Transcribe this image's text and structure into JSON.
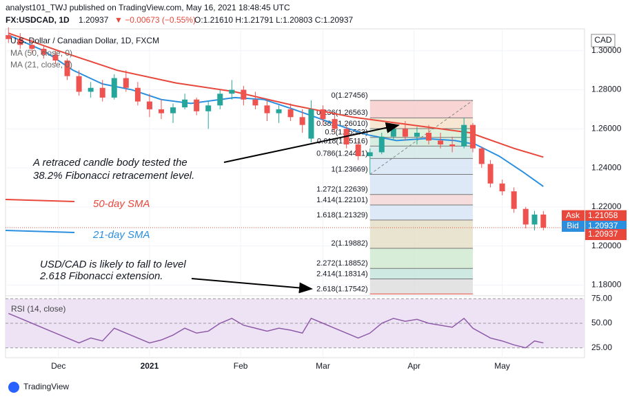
{
  "chart_data": {
    "type": "candlestick",
    "header": {
      "publisher": "analyst101_TWJ published on TradingView.com, May 16, 2021 18:48:45 UTC",
      "symbol": "FX:USDCAD, 1D",
      "last": "1.20937",
      "change": "▼ −0.00673 (−0.55%)",
      "ohlc": "O:1.21610 H:1.21791 L:1.20803 C:1.20937"
    },
    "title": "U.S. Dollar / Canadian Dollar, 1D, FXCM",
    "currency": "CAD",
    "xlim": [
      12,
      209
    ],
    "xticks": [
      {
        "value": 30,
        "label": "Dec"
      },
      {
        "value": 61,
        "label": "2021"
      },
      {
        "value": 92,
        "label": "Feb"
      },
      {
        "value": 120,
        "label": "Mar"
      },
      {
        "value": 151,
        "label": "Apr"
      },
      {
        "value": 181,
        "label": "May"
      }
    ],
    "ylim": [
      1.1745,
      1.3112
    ],
    "yticks": [
      {
        "value": 1.3,
        "label": "1.30000"
      },
      {
        "value": 1.28,
        "label": "1.28000"
      },
      {
        "value": 1.26,
        "label": "1.26000"
      },
      {
        "value": 1.24,
        "label": "1.24000"
      },
      {
        "value": 1.22,
        "label": "1.22000"
      },
      {
        "value": 1.2,
        "label": "1.20000"
      },
      {
        "value": 1.18,
        "label": "1.18000"
      }
    ],
    "candles": {
      "x": [
        13,
        17,
        21,
        25,
        29,
        33,
        37,
        41,
        45,
        49,
        53,
        57,
        61,
        65,
        69,
        73,
        77,
        81,
        85,
        89,
        93,
        97,
        101,
        105,
        109,
        113,
        116,
        120,
        124,
        128,
        132,
        136,
        140,
        144,
        148,
        152,
        156,
        160,
        164,
        168,
        171,
        174,
        177,
        181,
        185,
        189,
        192,
        195
      ],
      "open": [
        1.308,
        1.306,
        1.303,
        1.301,
        1.298,
        1.295,
        1.287,
        1.279,
        1.281,
        1.276,
        1.286,
        1.281,
        1.274,
        1.27,
        1.268,
        1.271,
        1.275,
        1.269,
        1.272,
        1.278,
        1.28,
        1.275,
        1.272,
        1.268,
        1.27,
        1.266,
        1.255,
        1.27,
        1.265,
        1.26,
        1.252,
        1.246,
        1.248,
        1.256,
        1.26,
        1.256,
        1.258,
        1.254,
        1.252,
        1.251,
        1.262,
        1.25,
        1.242,
        1.232,
        1.228,
        1.219,
        1.211,
        1.2161
      ],
      "high": [
        1.312,
        1.309,
        1.306,
        1.303,
        1.3,
        1.296,
        1.29,
        1.284,
        1.285,
        1.288,
        1.29,
        1.284,
        1.278,
        1.275,
        1.273,
        1.278,
        1.276,
        1.274,
        1.28,
        1.285,
        1.282,
        1.279,
        1.275,
        1.272,
        1.273,
        1.27,
        1.27456,
        1.272,
        1.268,
        1.262,
        1.254,
        1.25,
        1.258,
        1.262,
        1.264,
        1.261,
        1.262,
        1.258,
        1.256,
        1.26563,
        1.263,
        1.251,
        1.244,
        1.234,
        1.23,
        1.22,
        1.218,
        1.21791
      ],
      "low": [
        1.304,
        1.301,
        1.299,
        1.296,
        1.293,
        1.285,
        1.277,
        1.276,
        1.274,
        1.275,
        1.279,
        1.272,
        1.266,
        1.265,
        1.263,
        1.27,
        1.267,
        1.26,
        1.27,
        1.275,
        1.272,
        1.27,
        1.264,
        1.263,
        1.264,
        1.258,
        1.253,
        1.262,
        1.258,
        1.25,
        1.244,
        1.23669,
        1.247,
        1.254,
        1.254,
        1.252,
        1.252,
        1.25,
        1.248,
        1.25,
        1.248,
        1.24,
        1.23,
        1.226,
        1.217,
        1.209,
        1.208,
        1.20803
      ],
      "close": [
        1.306,
        1.303,
        1.301,
        1.298,
        1.295,
        1.287,
        1.279,
        1.281,
        1.276,
        1.286,
        1.281,
        1.274,
        1.27,
        1.268,
        1.271,
        1.275,
        1.269,
        1.272,
        1.278,
        1.28,
        1.275,
        1.272,
        1.268,
        1.27,
        1.266,
        1.262,
        1.27,
        1.265,
        1.26,
        1.252,
        1.246,
        1.248,
        1.256,
        1.26,
        1.256,
        1.258,
        1.254,
        1.252,
        1.251,
        1.262,
        1.25,
        1.242,
        1.232,
        1.228,
        1.219,
        1.211,
        1.2161,
        1.20937
      ]
    },
    "series": [
      {
        "name": "MA (50, close, 0)",
        "color": "#e8473b",
        "label": "50-day SMA",
        "x": [
          13,
          30,
          50,
          70,
          90,
          110,
          130,
          150,
          170,
          185,
          195
        ],
        "values": [
          1.309,
          1.3,
          1.29,
          1.2835,
          1.279,
          1.272,
          1.266,
          1.262,
          1.258,
          1.25,
          1.2455
        ]
      },
      {
        "name": "MA (21, close, 0)",
        "color": "#2b8fe0",
        "label": "21-day SMA",
        "x": [
          13,
          25,
          35,
          45,
          55,
          65,
          75,
          90,
          100,
          110,
          125,
          135,
          145,
          155,
          165,
          172,
          180,
          188,
          195
        ],
        "values": [
          1.308,
          1.3,
          1.29,
          1.283,
          1.28,
          1.275,
          1.273,
          1.276,
          1.275,
          1.27,
          1.262,
          1.257,
          1.254,
          1.255,
          1.254,
          1.252,
          1.246,
          1.238,
          1.2305
        ]
      }
    ],
    "fibonacci": {
      "x": [
        136,
        171
      ],
      "levels": [
        {
          "value": 1.27456,
          "label": "0(1.27456)"
        },
        {
          "value": 1.26563,
          "label": "0.236(1.26563)"
        },
        {
          "value": 1.2601,
          "label": "0.382(1.26010)"
        },
        {
          "value": 1.25563,
          "label": "0.5(1.25563)"
        },
        {
          "value": 1.25116,
          "label": "0.618(1.25116)"
        },
        {
          "value": 1.24481,
          "label": "0.786(1.24481)"
        },
        {
          "value": 1.23669,
          "label": "1(1.23669)"
        },
        {
          "value": 1.22639,
          "label": "1.272(1.22639)"
        },
        {
          "value": 1.22101,
          "label": "1.414(1.22101)"
        },
        {
          "value": 1.21329,
          "label": "1.618(1.21329)"
        },
        {
          "value": 1.19882,
          "label": "2(1.19882)"
        },
        {
          "value": 1.18852,
          "label": "2.272(1.18852)"
        },
        {
          "value": 1.18314,
          "label": "2.414(1.18314)"
        },
        {
          "value": 1.17542,
          "label": "2.618(1.17542)"
        }
      ]
    },
    "price_labels": [
      {
        "name": "Ask",
        "value": 1.21058,
        "label": "1.21058",
        "color": "#e8473b"
      },
      {
        "name": "Bid",
        "value": 1.20937,
        "label": "1.20937",
        "color": "#2b8fe0"
      },
      {
        "value": 1.20937,
        "label": "1.20937",
        "color": "#e8473b"
      }
    ],
    "annotations": [
      "A retraced candle body tested the",
      "38.2% Fibonacci  retracement level.",
      "USD/CAD is likely to fall to level",
      "2.618 Fibonacci extension."
    ],
    "rsi": {
      "name": "RSI (14, close)",
      "color": "#8e5aa8",
      "ylim": [
        15,
        78
      ],
      "yticks": [
        {
          "value": 75,
          "label": "75.00"
        },
        {
          "value": 50,
          "label": "50.00"
        },
        {
          "value": 25,
          "label": "25.00"
        }
      ],
      "values": [
        60,
        55,
        50,
        45,
        40,
        35,
        30,
        35,
        32,
        45,
        40,
        35,
        30,
        33,
        38,
        45,
        40,
        42,
        50,
        55,
        48,
        45,
        42,
        45,
        43,
        40,
        55,
        50,
        45,
        40,
        35,
        40,
        50,
        55,
        52,
        54,
        50,
        48,
        46,
        55,
        45,
        40,
        35,
        32,
        28,
        25,
        32,
        30
      ]
    },
    "footer": "TradingView"
  }
}
